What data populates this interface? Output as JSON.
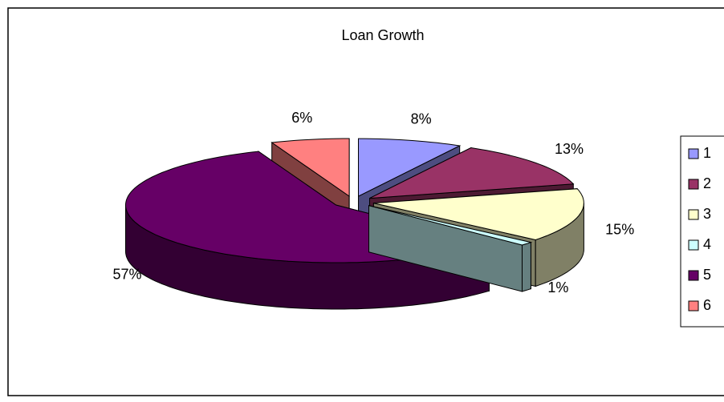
{
  "chart_data": {
    "type": "pie3d",
    "title": "Loan Growth",
    "categories": [
      "1",
      "2",
      "3",
      "4",
      "5",
      "6"
    ],
    "values": [
      8,
      13,
      15,
      1,
      57,
      6
    ],
    "value_labels": [
      "8%",
      "13%",
      "15%",
      "1%",
      "57%",
      "6%"
    ],
    "colors": [
      "#9999ff",
      "#993366",
      "#ffffcc",
      "#ccffff",
      "#660066",
      "#ff8080"
    ],
    "legend": "right"
  }
}
